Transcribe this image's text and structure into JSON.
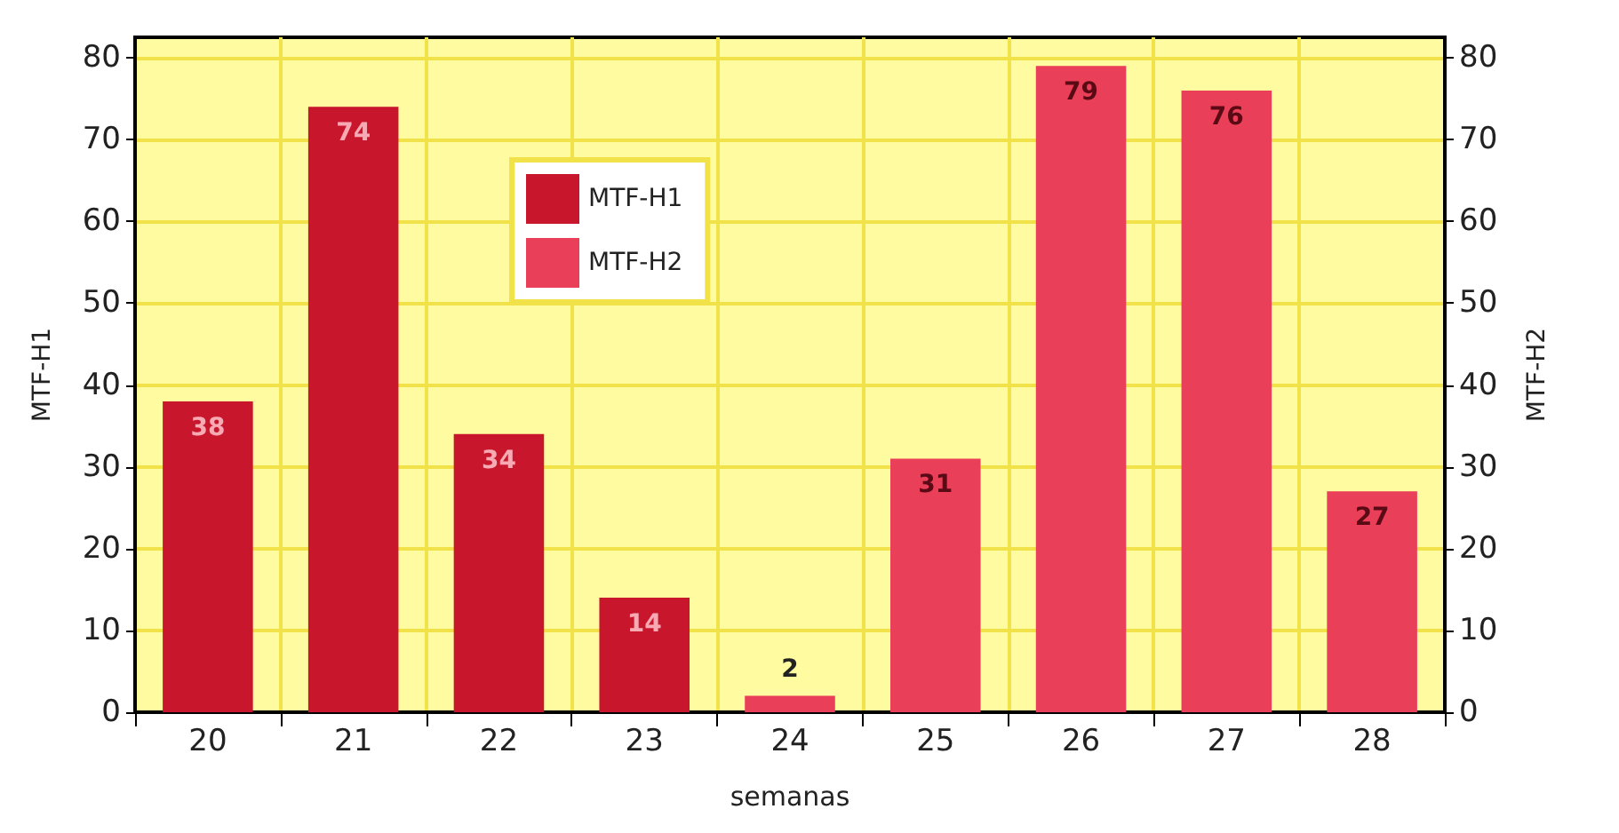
{
  "chart_data": {
    "type": "bar",
    "xlabel": "semanas",
    "ylabel": "MTF-H1",
    "y2label": "MTF-H2",
    "categories": [
      "20",
      "21",
      "22",
      "23",
      "24",
      "25",
      "26",
      "27",
      "28"
    ],
    "series": [
      {
        "name": "MTF-H1",
        "color": "#c8172c",
        "values": [
          38,
          74,
          34,
          14,
          null,
          null,
          null,
          null,
          null
        ]
      },
      {
        "name": "MTF-H2",
        "color": "#ea3f58",
        "axis": "y2",
        "values": [
          null,
          null,
          null,
          null,
          2,
          31,
          79,
          76,
          27
        ]
      }
    ],
    "ylim": [
      0,
      82.5
    ],
    "yticks": [
      0,
      10,
      20,
      30,
      40,
      50,
      60,
      70,
      80
    ],
    "y2lim": [
      0,
      82.5
    ],
    "y2ticks": [
      0,
      10,
      20,
      30,
      40,
      50,
      60,
      70,
      80
    ],
    "data_labels": true,
    "grid": true,
    "legend": "top left"
  }
}
